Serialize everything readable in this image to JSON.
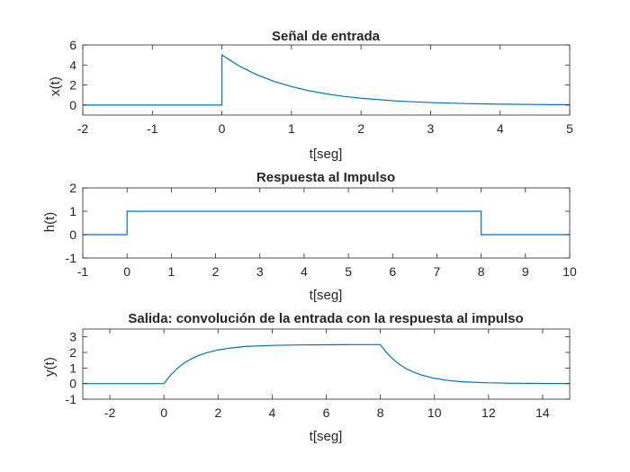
{
  "chart_data": [
    {
      "type": "line",
      "title": "Señal de entrada",
      "xlabel": "t[seg]",
      "ylabel": "x(t)",
      "xlim": [
        -2,
        5
      ],
      "ylim": [
        -1,
        6
      ],
      "xticks": [
        "-2",
        "-1",
        "0",
        "1",
        "2",
        "3",
        "4",
        "5"
      ],
      "yticks": [
        "0",
        "2",
        "4",
        "6"
      ],
      "grid": false,
      "series": [
        {
          "color": "#0072BD",
          "x": [
            -2,
            0,
            0,
            0.25,
            0.5,
            0.75,
            1,
            1.25,
            1.5,
            1.75,
            2,
            2.5,
            3,
            3.5,
            4,
            4.5,
            5
          ],
          "y": [
            0,
            0,
            5,
            3.89,
            3.03,
            2.36,
            1.84,
            1.43,
            1.12,
            0.87,
            0.68,
            0.41,
            0.25,
            0.15,
            0.09,
            0.06,
            0.03
          ]
        }
      ]
    },
    {
      "type": "line",
      "title": "Respuesta al Impulso",
      "xlabel": "t[seg]",
      "ylabel": "h(t)",
      "xlim": [
        -1,
        10
      ],
      "ylim": [
        -1,
        2
      ],
      "xticks": [
        "-1",
        "0",
        "1",
        "2",
        "3",
        "4",
        "5",
        "6",
        "7",
        "8",
        "9",
        "10"
      ],
      "yticks": [
        "-1",
        "0",
        "1",
        "2"
      ],
      "grid": false,
      "series": [
        {
          "color": "#0072BD",
          "x": [
            -1,
            0,
            0,
            8,
            8,
            10
          ],
          "y": [
            0,
            0,
            1,
            1,
            0,
            0
          ]
        }
      ]
    },
    {
      "type": "line",
      "title": "Salida: convolución de la entrada con la respuesta al impulso",
      "xlabel": "t[seg]",
      "ylabel": "y(t)",
      "xlim": [
        -3,
        15
      ],
      "ylim": [
        -1,
        3.5
      ],
      "xticks": [
        "-2",
        "0",
        "2",
        "4",
        "6",
        "8",
        "10",
        "12",
        "14"
      ],
      "yticks": [
        "-1",
        "0",
        "1",
        "2",
        "3"
      ],
      "grid": false,
      "series": [
        {
          "color": "#0072BD",
          "x": [
            -3,
            0,
            0.25,
            0.5,
            0.75,
            1,
            1.25,
            1.5,
            2,
            2.5,
            3,
            4,
            5,
            6,
            7,
            8,
            8.25,
            8.5,
            8.75,
            9,
            9.25,
            9.5,
            10,
            10.5,
            11,
            12,
            13,
            14,
            15
          ],
          "y": [
            0,
            0,
            0.55,
            0.98,
            1.32,
            1.58,
            1.78,
            1.94,
            2.16,
            2.29,
            2.38,
            2.45,
            2.48,
            2.49,
            2.5,
            2.5,
            1.95,
            1.52,
            1.18,
            0.92,
            0.72,
            0.56,
            0.34,
            0.2,
            0.12,
            0.05,
            0.02,
            0.01,
            0
          ]
        }
      ]
    }
  ]
}
